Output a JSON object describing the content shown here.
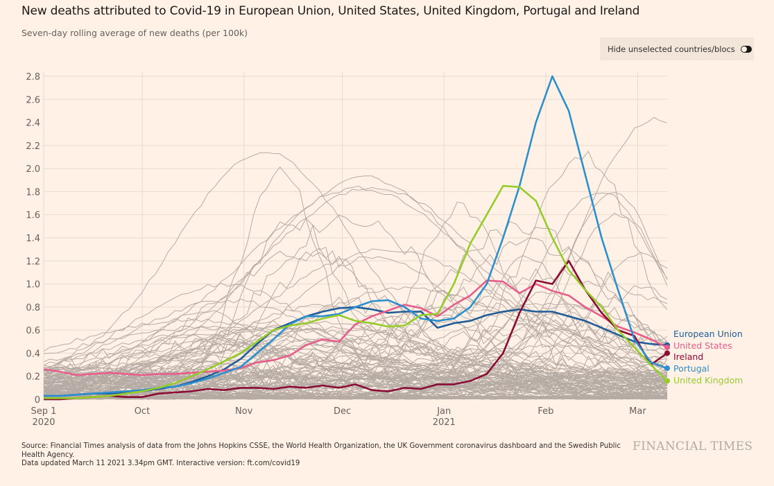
{
  "header": {
    "title": "New deaths attributed to Covid-19 in European Union, United States, United Kingdom, Portugal and Ireland",
    "subtitle": "Seven-day rolling average of new deaths (per 100k)"
  },
  "controls": {
    "toggle_label": "Hide unselected countries/blocs",
    "toggle_on": false
  },
  "footer": {
    "source_line1": "Source: Financial Times analysis of data from the Johns Hopkins CSSE, the World Health Organization, the UK Government coronavirus dashboard and the Swedish Public Health Agency.",
    "source_line2": "Data updated March 11 2021 3.34pm GMT. Interactive version: ft.com/covid19",
    "logo": "FINANCIAL TIMES"
  },
  "chart_data": {
    "type": "line",
    "title": "New deaths attributed to Covid-19 in European Union, United States, United Kingdom, Portugal and Ireland",
    "subtitle": "Seven-day rolling average of new deaths (per 100k)",
    "xlabel": "",
    "ylabel": "",
    "x_unit": "days since 2020-09-01",
    "xlim": [
      0,
      190
    ],
    "ylim": [
      0,
      2.8
    ],
    "grid": true,
    "legend_placement": "right (end-of-line labels)",
    "yticks": [
      0,
      0.2,
      0.4,
      0.6,
      0.8,
      1.0,
      1.2,
      1.4,
      1.6,
      1.8,
      2.0,
      2.2,
      2.4,
      2.6,
      2.8
    ],
    "ytick_labels": [
      "0",
      "0.2",
      "0.4",
      "0.6",
      "0.8",
      "1.0",
      "1.2",
      "1.4",
      "1.6",
      "1.8",
      "2.0",
      "2.2",
      "2.4",
      "2.6",
      "2.8"
    ],
    "xticks": [
      {
        "x": 0,
        "label": "Sep 1",
        "sublabel": "2020"
      },
      {
        "x": 30,
        "label": "Oct",
        "sublabel": ""
      },
      {
        "x": 61,
        "label": "Nov",
        "sublabel": ""
      },
      {
        "x": 91,
        "label": "Dec",
        "sublabel": ""
      },
      {
        "x": 122,
        "label": "Jan",
        "sublabel": "2021"
      },
      {
        "x": 153,
        "label": "Feb",
        "sublabel": ""
      },
      {
        "x": 181,
        "label": "Mar",
        "sublabel": ""
      }
    ],
    "x": [
      0,
      5,
      10,
      15,
      20,
      25,
      30,
      35,
      40,
      45,
      50,
      55,
      60,
      65,
      70,
      75,
      80,
      85,
      90,
      95,
      100,
      105,
      110,
      115,
      120,
      125,
      130,
      135,
      140,
      145,
      150,
      155,
      160,
      165,
      170,
      175,
      180,
      185,
      190
    ],
    "series": [
      {
        "name": "European Union",
        "color": "#1f5c99",
        "values": [
          0.03,
          0.03,
          0.04,
          0.05,
          0.05,
          0.06,
          0.07,
          0.09,
          0.11,
          0.15,
          0.2,
          0.26,
          0.35,
          0.48,
          0.6,
          0.66,
          0.72,
          0.76,
          0.79,
          0.8,
          0.78,
          0.75,
          0.76,
          0.76,
          0.62,
          0.66,
          0.68,
          0.73,
          0.76,
          0.78,
          0.76,
          0.76,
          0.72,
          0.68,
          0.62,
          0.56,
          0.5,
          0.48,
          0.47
        ]
      },
      {
        "name": "United States",
        "color": "#e95d8c",
        "values": [
          0.26,
          0.24,
          0.21,
          0.22,
          0.23,
          0.22,
          0.21,
          0.22,
          0.22,
          0.23,
          0.24,
          0.25,
          0.27,
          0.32,
          0.34,
          0.38,
          0.47,
          0.52,
          0.5,
          0.65,
          0.72,
          0.77,
          0.82,
          0.79,
          0.72,
          0.82,
          0.9,
          1.03,
          1.02,
          0.92,
          1.0,
          0.94,
          0.9,
          0.8,
          0.72,
          0.63,
          0.58,
          0.52,
          0.45
        ]
      },
      {
        "name": "Ireland",
        "color": "#8a0b34",
        "values": [
          0.0,
          0.0,
          0.01,
          0.02,
          0.03,
          0.02,
          0.02,
          0.05,
          0.06,
          0.07,
          0.09,
          0.08,
          0.1,
          0.1,
          0.09,
          0.11,
          0.1,
          0.12,
          0.1,
          0.13,
          0.08,
          0.07,
          0.1,
          0.09,
          0.13,
          0.13,
          0.16,
          0.22,
          0.4,
          0.75,
          1.03,
          1.0,
          1.2,
          0.95,
          0.75,
          0.6,
          0.55,
          0.3,
          0.4
        ]
      },
      {
        "name": "Portugal",
        "color": "#2b8fcf",
        "values": [
          0.03,
          0.03,
          0.04,
          0.05,
          0.06,
          0.07,
          0.08,
          0.1,
          0.11,
          0.14,
          0.18,
          0.23,
          0.28,
          0.4,
          0.52,
          0.65,
          0.72,
          0.72,
          0.74,
          0.8,
          0.85,
          0.86,
          0.8,
          0.7,
          0.68,
          0.7,
          0.8,
          1.0,
          1.4,
          1.85,
          2.4,
          2.8,
          2.5,
          1.95,
          1.4,
          0.95,
          0.52,
          0.32,
          0.27
        ]
      },
      {
        "name": "United Kingdom",
        "color": "#96cc28",
        "values": [
          0.01,
          0.01,
          0.01,
          0.02,
          0.03,
          0.05,
          0.07,
          0.1,
          0.14,
          0.2,
          0.26,
          0.33,
          0.4,
          0.5,
          0.6,
          0.64,
          0.66,
          0.7,
          0.73,
          0.68,
          0.66,
          0.63,
          0.64,
          0.73,
          0.74,
          1.0,
          1.35,
          1.6,
          1.85,
          1.84,
          1.72,
          1.4,
          1.12,
          0.95,
          0.8,
          0.6,
          0.45,
          0.3,
          0.16
        ]
      }
    ],
    "background_series_note": "Many unlabelled grey lines representing other countries/blocs"
  }
}
